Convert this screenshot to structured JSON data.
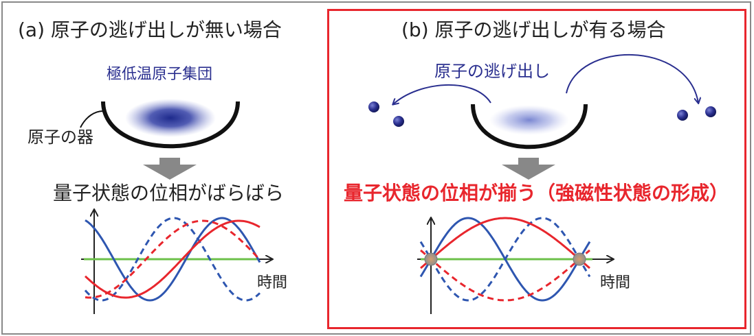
{
  "panel_a": {
    "title": "(a) 原子の逃げ出しが無い場合",
    "cloud_label": "極低温原子集団",
    "vessel_label": "原子の器",
    "phase_status": "量子状態の位相がばらばら",
    "axis_label": "時間"
  },
  "panel_b": {
    "title": "(b) 原子の逃げ出しが有る場合",
    "escape_label": "原子の逃げ出し",
    "phase_status": "量子状態の位相が揃う（強磁性状態の形成）",
    "axis_label": "時間"
  },
  "colors": {
    "highlight_frame": "#e8262d",
    "atom": "#2a2f8f",
    "wave_blue": "#2e56b0",
    "wave_red": "#e8262d",
    "baseline": "#6cc04a",
    "arrow": "#888888"
  }
}
